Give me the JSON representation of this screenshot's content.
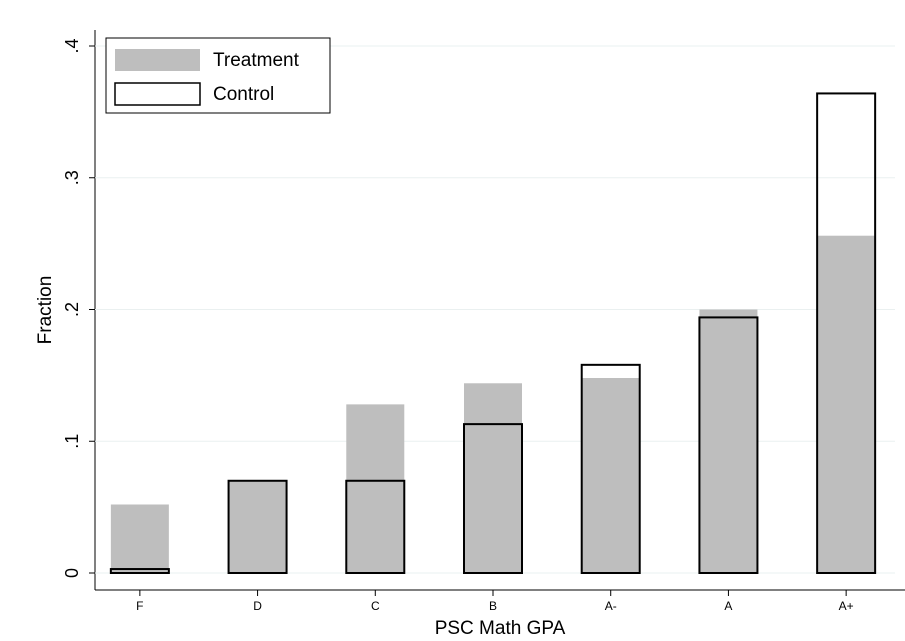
{
  "chart_data": {
    "type": "bar",
    "xlabel": "PSC Math GPA",
    "ylabel": "Fraction",
    "categories": [
      "F",
      "D",
      "C",
      "B",
      "A-",
      "A",
      "A+"
    ],
    "series": [
      {
        "name": "Treatment",
        "color": "#bebebe",
        "filled": true,
        "values": [
          0.052,
          0.07,
          0.128,
          0.144,
          0.148,
          0.2,
          0.256
        ]
      },
      {
        "name": "Control",
        "color": "#000000",
        "filled": false,
        "values": [
          0.003,
          0.07,
          0.07,
          0.113,
          0.158,
          0.194,
          0.364
        ]
      }
    ],
    "ylim": [
      0,
      0.4
    ],
    "yticks": [
      0,
      {
        "value": 0.1,
        "label": ".1"
      },
      {
        "value": 0.2,
        "label": ".2"
      },
      {
        "value": 0.3,
        "label": ".3"
      },
      {
        "value": 0.4,
        "label": ".4"
      }
    ],
    "grid": true,
    "legend": "upper left"
  }
}
